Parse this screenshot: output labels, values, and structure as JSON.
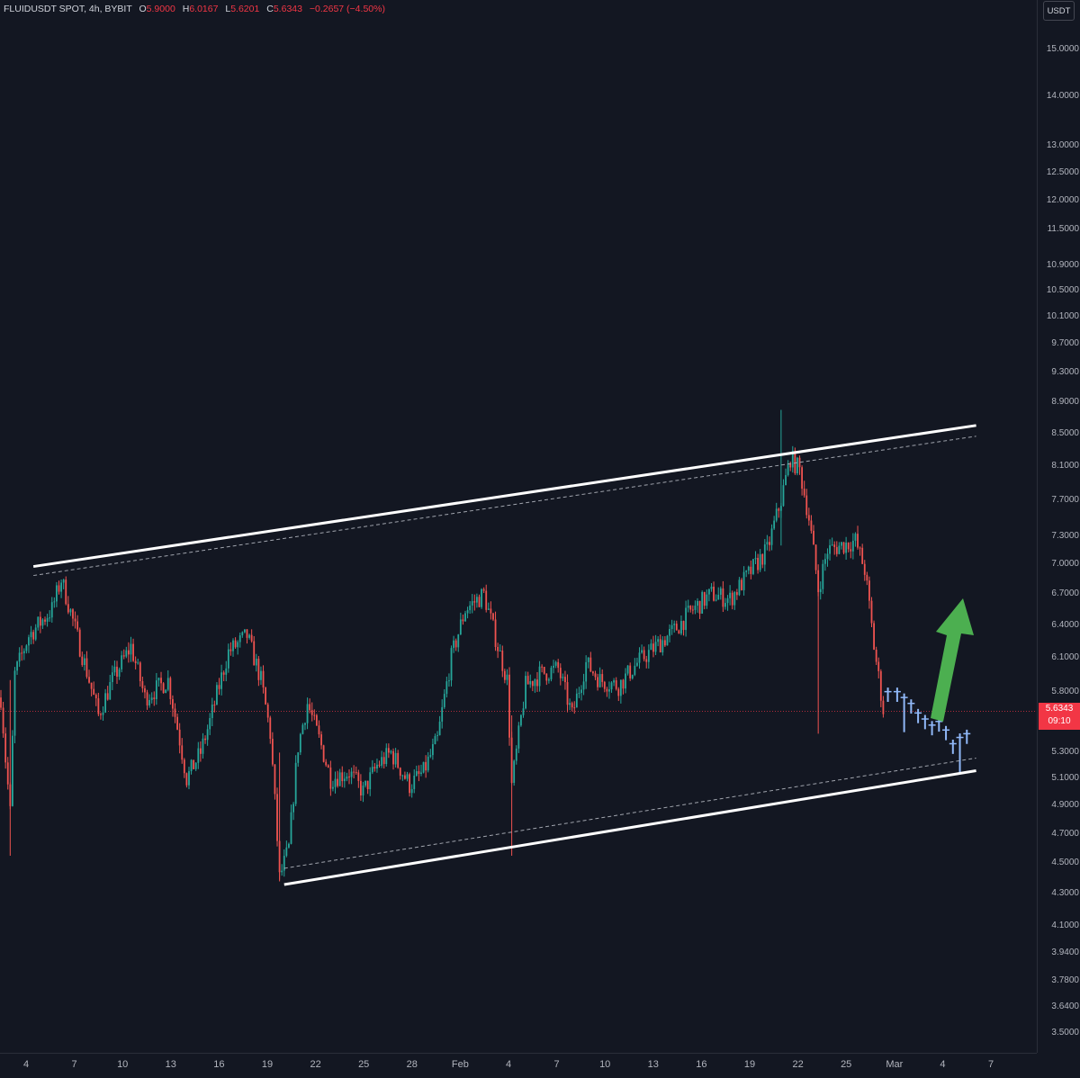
{
  "legend": {
    "symbol": "FLUIDUSDT SPOT, 4h, BYBIT",
    "open_key": "O",
    "open": "5.9000",
    "high_key": "H",
    "high": "6.0167",
    "low_key": "L",
    "low": "5.6201",
    "close_key": "C",
    "close": "5.6343",
    "change": "−0.2657 (−4.50%)"
  },
  "currency_button": "USDT",
  "price_tag": {
    "price": "5.6343",
    "countdown": "09:10"
  },
  "colors": {
    "background": "#131722",
    "up": "#26a69a",
    "down": "#ef5350",
    "forecast": "#90b8f8",
    "arrow": "#4caf50",
    "channel": "#ffffff"
  },
  "chart_data": {
    "type": "candlestick",
    "y_scale": "log",
    "y_ticks": [
      "15.0000",
      "14.0000",
      "13.0000",
      "12.5000",
      "12.0000",
      "11.5000",
      "10.9000",
      "10.5000",
      "10.1000",
      "9.7000",
      "9.3000",
      "8.9000",
      "8.5000",
      "8.1000",
      "7.7000",
      "7.3000",
      "7.0000",
      "6.7000",
      "6.4000",
      "6.1000",
      "5.8000",
      "5.3000",
      "5.1000",
      "4.9000",
      "4.7000",
      "4.5000",
      "4.3000",
      "4.1000",
      "3.9400",
      "3.7800",
      "3.6400",
      "3.5000"
    ],
    "x_ticks": [
      "4",
      "7",
      "10",
      "13",
      "16",
      "19",
      "22",
      "25",
      "28",
      "Feb",
      "4",
      "7",
      "10",
      "13",
      "16",
      "19",
      "22",
      "25",
      "Mar",
      "4",
      "7"
    ],
    "anchors": [
      {
        "t": 0,
        "p": 5.75
      },
      {
        "t": 2,
        "p": 5.25
      },
      {
        "t": 4,
        "p": 4.85
      },
      {
        "t": 6,
        "p": 5.95
      },
      {
        "t": 12,
        "p": 6.3
      },
      {
        "t": 22,
        "p": 6.55
      },
      {
        "t": 26,
        "p": 6.85
      },
      {
        "t": 34,
        "p": 6.2
      },
      {
        "t": 42,
        "p": 5.6
      },
      {
        "t": 48,
        "p": 5.9
      },
      {
        "t": 56,
        "p": 6.2
      },
      {
        "t": 62,
        "p": 5.75
      },
      {
        "t": 72,
        "p": 5.9
      },
      {
        "t": 80,
        "p": 5.1
      },
      {
        "t": 86,
        "p": 5.3
      },
      {
        "t": 90,
        "p": 5.55
      },
      {
        "t": 98,
        "p": 6.15
      },
      {
        "t": 106,
        "p": 6.3
      },
      {
        "t": 112,
        "p": 5.9
      },
      {
        "t": 116,
        "p": 5.45
      },
      {
        "t": 120,
        "p": 4.4
      },
      {
        "t": 124,
        "p": 4.6
      },
      {
        "t": 128,
        "p": 5.35
      },
      {
        "t": 132,
        "p": 5.7
      },
      {
        "t": 138,
        "p": 5.35
      },
      {
        "t": 142,
        "p": 5.1
      },
      {
        "t": 150,
        "p": 5.15
      },
      {
        "t": 156,
        "p": 5.0
      },
      {
        "t": 162,
        "p": 5.2
      },
      {
        "t": 168,
        "p": 5.3
      },
      {
        "t": 176,
        "p": 5.05
      },
      {
        "t": 182,
        "p": 5.15
      },
      {
        "t": 188,
        "p": 5.4
      },
      {
        "t": 194,
        "p": 6.1
      },
      {
        "t": 200,
        "p": 6.55
      },
      {
        "t": 208,
        "p": 6.7
      },
      {
        "t": 214,
        "p": 6.2
      },
      {
        "t": 218,
        "p": 5.9
      },
      {
        "t": 220,
        "p": 5.05
      },
      {
        "t": 222,
        "p": 5.3
      },
      {
        "t": 226,
        "p": 5.85
      },
      {
        "t": 232,
        "p": 5.95
      },
      {
        "t": 240,
        "p": 6.0
      },
      {
        "t": 246,
        "p": 5.6
      },
      {
        "t": 252,
        "p": 6.05
      },
      {
        "t": 258,
        "p": 5.9
      },
      {
        "t": 266,
        "p": 5.85
      },
      {
        "t": 274,
        "p": 6.05
      },
      {
        "t": 282,
        "p": 6.2
      },
      {
        "t": 290,
        "p": 6.35
      },
      {
        "t": 298,
        "p": 6.55
      },
      {
        "t": 306,
        "p": 6.7
      },
      {
        "t": 314,
        "p": 6.65
      },
      {
        "t": 322,
        "p": 6.9
      },
      {
        "t": 330,
        "p": 7.15
      },
      {
        "t": 336,
        "p": 7.7
      },
      {
        "t": 340,
        "p": 8.2
      },
      {
        "t": 344,
        "p": 8.05
      },
      {
        "t": 348,
        "p": 7.5
      },
      {
        "t": 352,
        "p": 6.75
      },
      {
        "t": 356,
        "p": 7.15
      },
      {
        "t": 362,
        "p": 7.2
      },
      {
        "t": 368,
        "p": 7.25
      },
      {
        "t": 372,
        "p": 6.95
      },
      {
        "t": 376,
        "p": 6.2
      },
      {
        "t": 380,
        "p": 5.65
      }
    ],
    "forecast": [
      {
        "t": 382,
        "p": 5.8
      },
      {
        "t": 386,
        "p": 5.8
      },
      {
        "t": 389,
        "p": 5.75
      },
      {
        "t": 392,
        "p": 5.7
      },
      {
        "t": 395,
        "p": 5.62
      },
      {
        "t": 398,
        "p": 5.57
      },
      {
        "t": 401,
        "p": 5.52
      },
      {
        "t": 404,
        "p": 5.55
      },
      {
        "t": 407,
        "p": 5.48
      },
      {
        "t": 410,
        "p": 5.37
      },
      {
        "t": 413,
        "p": 5.42
      },
      {
        "t": 416,
        "p": 5.45
      }
    ],
    "channel_upper": [
      {
        "t": 14,
        "p": 6.98
      },
      {
        "t": 420,
        "p": 8.6
      }
    ],
    "channel_lower": [
      {
        "t": 122,
        "p": 4.36
      },
      {
        "t": 420,
        "p": 5.16
      }
    ],
    "current_price": 5.6343
  }
}
